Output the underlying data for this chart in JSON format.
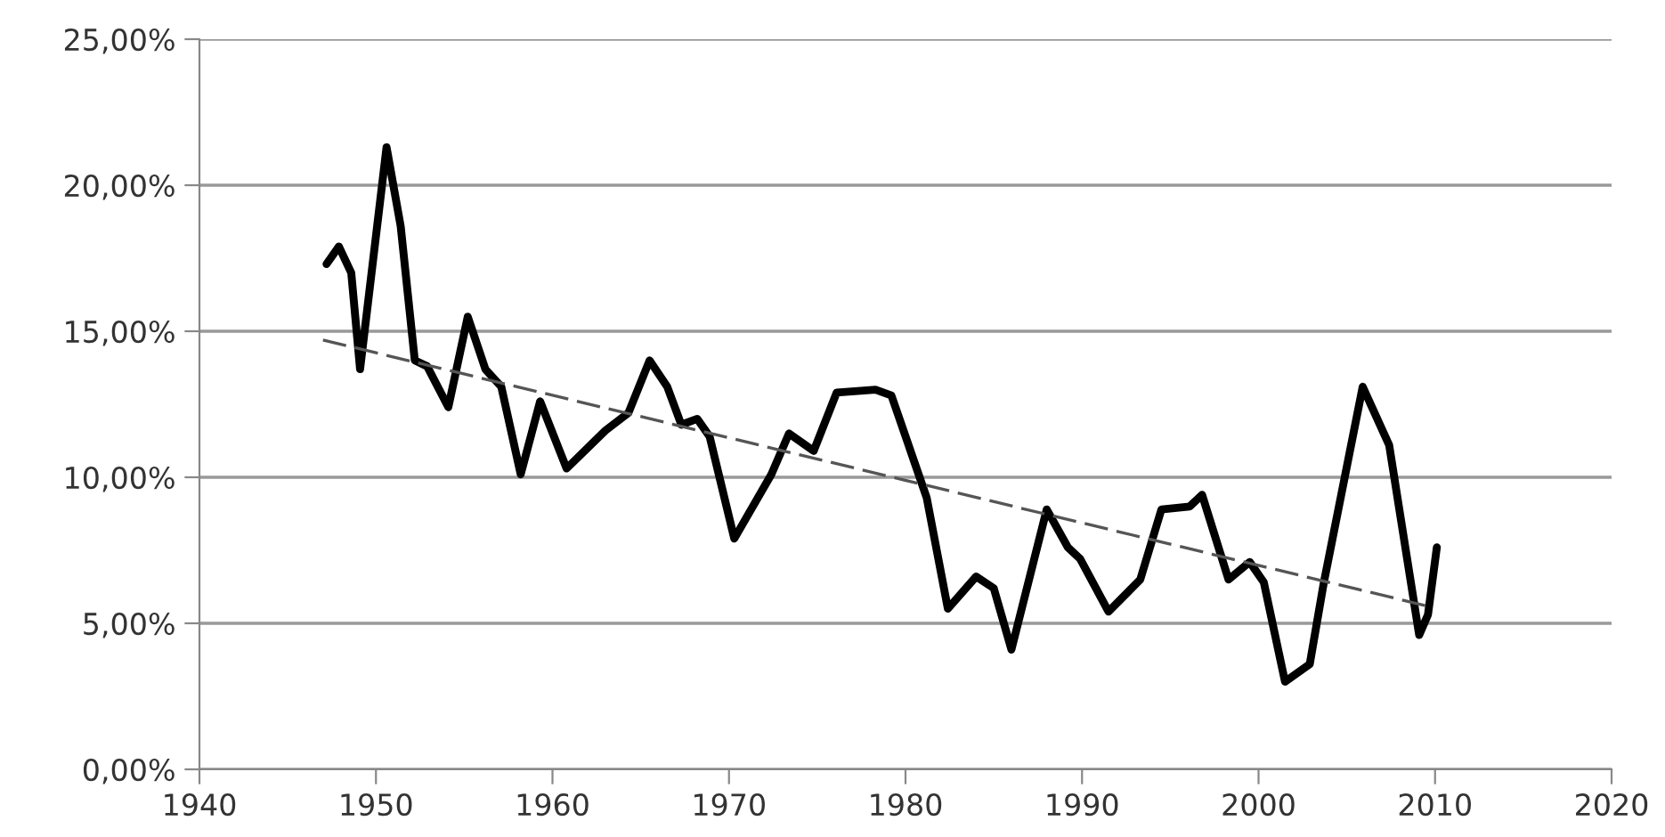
{
  "chart_data": {
    "type": "line",
    "xlim": [
      1940,
      2020
    ],
    "xticks": [
      1940,
      1950,
      1960,
      1970,
      1980,
      1990,
      2000,
      2010,
      2020
    ],
    "ylim": [
      0,
      25
    ],
    "yticks": [
      {
        "value": 0,
        "label": "0,00%"
      },
      {
        "value": 5,
        "label": "5,00%"
      },
      {
        "value": 10,
        "label": "10,00%"
      },
      {
        "value": 15,
        "label": "15,00%"
      },
      {
        "value": 20,
        "label": "20,00%"
      },
      {
        "value": 25,
        "label": "25,00%"
      }
    ],
    "grid": "y",
    "legend": false,
    "marker": "none",
    "series": [
      {
        "color": "#000000",
        "line_style": "solid",
        "x": [
          1947.2,
          1947.9,
          1948.6,
          1949.1,
          1950.6,
          1951.4,
          1952.2,
          1952.9,
          1954.1,
          1955.2,
          1956.2,
          1957.1,
          1958.2,
          1959.3,
          1960.8,
          1963.0,
          1964.3,
          1965.5,
          1966.5,
          1967.3,
          1968.2,
          1968.9,
          1970.3,
          1972.4,
          1973.4,
          1974.8,
          1976.1,
          1978.3,
          1979.2,
          1981.2,
          1982.4,
          1984.0,
          1985.0,
          1986.0,
          1988.0,
          1989.2,
          1989.9,
          1991.5,
          1993.3,
          1994.5,
          1996.1,
          1996.8,
          1998.3,
          1999.5,
          2000.3,
          2001.5,
          2002.9,
          2003.7,
          2005.9,
          2007.4,
          2009.1,
          2009.6,
          2010.1
        ],
        "values": [
          17.3,
          17.9,
          17.0,
          13.7,
          21.3,
          18.6,
          14.0,
          13.8,
          12.4,
          15.5,
          13.7,
          13.1,
          10.1,
          12.6,
          10.3,
          11.6,
          12.2,
          14.0,
          13.1,
          11.8,
          12.0,
          11.4,
          7.9,
          10.1,
          11.5,
          10.9,
          12.9,
          13.0,
          12.8,
          9.3,
          5.5,
          6.6,
          6.2,
          4.1,
          8.9,
          7.6,
          7.2,
          5.4,
          6.5,
          8.9,
          9.0,
          9.4,
          6.5,
          7.1,
          6.4,
          3.0,
          3.6,
          6.4,
          13.1,
          11.1,
          4.6,
          5.3,
          7.6
        ]
      },
      {
        "color": "#555555",
        "line_style": "dashed",
        "x": [
          1947,
          2009.5
        ],
        "values": [
          14.7,
          5.6
        ]
      }
    ]
  }
}
